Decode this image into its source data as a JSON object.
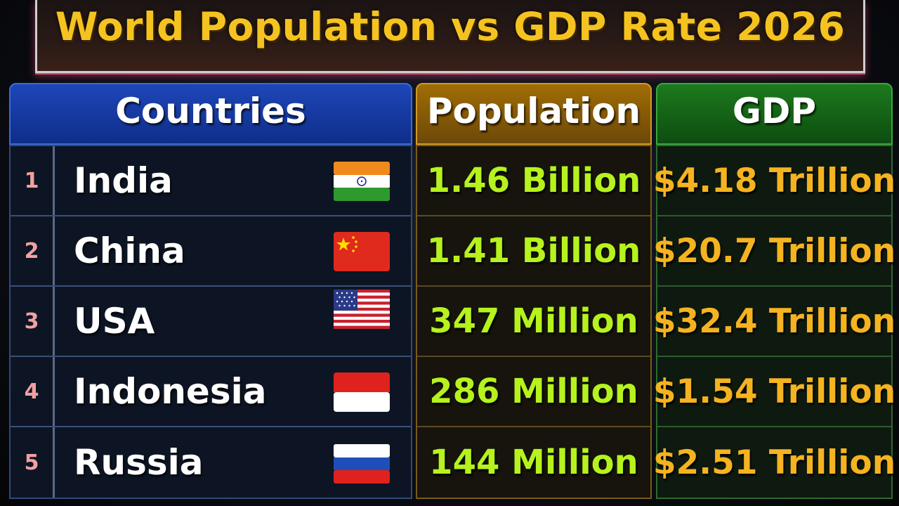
{
  "title": "World Population vs GDP Rate 2026",
  "headers": {
    "countries": "Countries",
    "population": "Population",
    "gdp": "GDP"
  },
  "rows": [
    {
      "rank": "1",
      "country": "India",
      "flag": "india-flag",
      "population": "1.46 Billion",
      "gdp": "$4.18 Trillion"
    },
    {
      "rank": "2",
      "country": "China",
      "flag": "china-flag",
      "population": "1.41 Billion",
      "gdp": "$20.7 Trillion"
    },
    {
      "rank": "3",
      "country": "USA",
      "flag": "usa-flag",
      "population": "347 Million",
      "gdp": "$32.4 Trillion"
    },
    {
      "rank": "4",
      "country": "Indonesia",
      "flag": "indonesia-flag",
      "population": "286 Million",
      "gdp": "$1.54 Trillion"
    },
    {
      "rank": "5",
      "country": "Russia",
      "flag": "russia-flag",
      "population": "144 Million",
      "gdp": "$2.51 Trillion"
    }
  ],
  "colors": {
    "title": "#f5c320",
    "population_value": "#b6f21e",
    "gdp_value": "#f5b320",
    "rank": "#f2a0a0",
    "countries_header": "#1e46b8",
    "population_header": "#a06d05",
    "gdp_header": "#1d7a1d"
  }
}
